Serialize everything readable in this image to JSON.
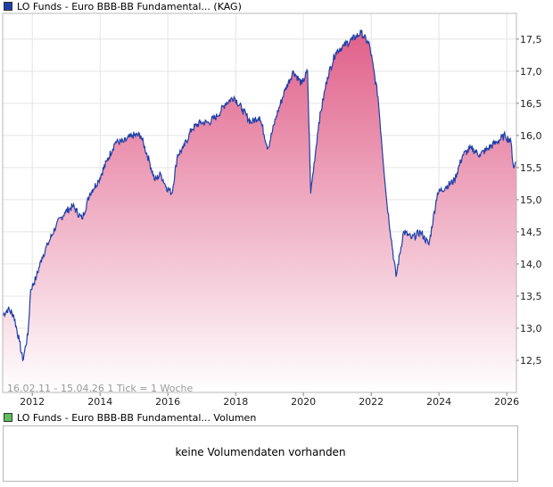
{
  "price_legend": {
    "label": "LO Funds - Euro BBB-BB Fundamental... (KAG)",
    "color": "#1f3fa8"
  },
  "volume_legend": {
    "label": "LO Funds - Euro BBB-BB Fundamental... Volumen",
    "color": "#5fbf5f"
  },
  "info_text": "16.02.11 - 15.04.26   1 Tick = 1 Woche",
  "volume_message": "keine Volumendaten vorhanden",
  "colors": {
    "line": "#1f3fa8",
    "fill_top": "#e0608a",
    "fill_bottom": "#ffffff",
    "grid": "#e4e4e4",
    "frame": "#b8b8b8"
  },
  "chart_data": {
    "type": "area",
    "title": "",
    "xlabel": "",
    "ylabel": "",
    "x_range": [
      "2011-02-16",
      "2026-04-15"
    ],
    "ylim": [
      12.0,
      17.9
    ],
    "x_ticks": [
      "2012",
      "2014",
      "2016",
      "2018",
      "2020",
      "2022",
      "2024",
      "2026"
    ],
    "y_ticks": [
      "12,5",
      "13,0",
      "13,5",
      "14,0",
      "14,5",
      "15,0",
      "15,5",
      "16,0",
      "16,5",
      "17,0",
      "17,5"
    ],
    "grid": true,
    "series": [
      {
        "name": "LO Funds - Euro BBB-BB Fundamental... (KAG)",
        "points": [
          [
            "2011-02-16",
            13.2
          ],
          [
            "2011-04-15",
            13.3
          ],
          [
            "2011-06-15",
            13.2
          ],
          [
            "2011-08-15",
            12.8
          ],
          [
            "2011-09-20",
            12.5
          ],
          [
            "2011-11-15",
            12.9
          ],
          [
            "2011-12-15",
            13.6
          ],
          [
            "2012-02-15",
            13.8
          ],
          [
            "2012-04-15",
            14.1
          ],
          [
            "2012-06-15",
            14.3
          ],
          [
            "2012-09-15",
            14.6
          ],
          [
            "2012-12-15",
            14.8
          ],
          [
            "2013-03-15",
            14.9
          ],
          [
            "2013-06-20",
            14.7
          ],
          [
            "2013-09-15",
            15.1
          ],
          [
            "2013-12-15",
            15.3
          ],
          [
            "2014-03-15",
            15.6
          ],
          [
            "2014-06-15",
            15.9
          ],
          [
            "2014-09-15",
            15.9
          ],
          [
            "2014-12-15",
            16.0
          ],
          [
            "2015-03-15",
            16.0
          ],
          [
            "2015-06-15",
            15.6
          ],
          [
            "2015-08-15",
            15.3
          ],
          [
            "2015-10-15",
            15.4
          ],
          [
            "2015-12-15",
            15.2
          ],
          [
            "2016-02-15",
            15.1
          ],
          [
            "2016-04-15",
            15.7
          ],
          [
            "2016-06-15",
            15.8
          ],
          [
            "2016-09-15",
            16.1
          ],
          [
            "2016-12-15",
            16.2
          ],
          [
            "2017-03-15",
            16.2
          ],
          [
            "2017-06-15",
            16.3
          ],
          [
            "2017-09-15",
            16.5
          ],
          [
            "2017-12-15",
            16.6
          ],
          [
            "2018-03-15",
            16.4
          ],
          [
            "2018-06-15",
            16.2
          ],
          [
            "2018-09-15",
            16.3
          ],
          [
            "2018-12-15",
            15.8
          ],
          [
            "2019-03-15",
            16.3
          ],
          [
            "2019-06-15",
            16.7
          ],
          [
            "2019-09-15",
            17.0
          ],
          [
            "2019-12-15",
            16.8
          ],
          [
            "2020-02-15",
            17.0
          ],
          [
            "2020-03-20",
            15.1
          ],
          [
            "2020-06-15",
            16.2
          ],
          [
            "2020-09-15",
            16.9
          ],
          [
            "2020-12-15",
            17.3
          ],
          [
            "2021-03-15",
            17.4
          ],
          [
            "2021-06-15",
            17.5
          ],
          [
            "2021-09-15",
            17.6
          ],
          [
            "2021-12-15",
            17.4
          ],
          [
            "2022-03-15",
            16.6
          ],
          [
            "2022-06-15",
            15.0
          ],
          [
            "2022-09-25",
            13.8
          ],
          [
            "2022-12-15",
            14.5
          ],
          [
            "2023-03-15",
            14.4
          ],
          [
            "2023-06-15",
            14.5
          ],
          [
            "2023-09-15",
            14.3
          ],
          [
            "2023-12-15",
            15.1
          ],
          [
            "2024-03-15",
            15.2
          ],
          [
            "2024-06-15",
            15.3
          ],
          [
            "2024-09-15",
            15.7
          ],
          [
            "2024-12-15",
            15.8
          ],
          [
            "2025-03-15",
            15.7
          ],
          [
            "2025-06-15",
            15.8
          ],
          [
            "2025-09-15",
            15.9
          ],
          [
            "2025-12-15",
            16.0
          ],
          [
            "2026-02-15",
            15.9
          ],
          [
            "2026-03-15",
            15.5
          ],
          [
            "2026-04-15",
            15.6
          ]
        ]
      }
    ]
  }
}
